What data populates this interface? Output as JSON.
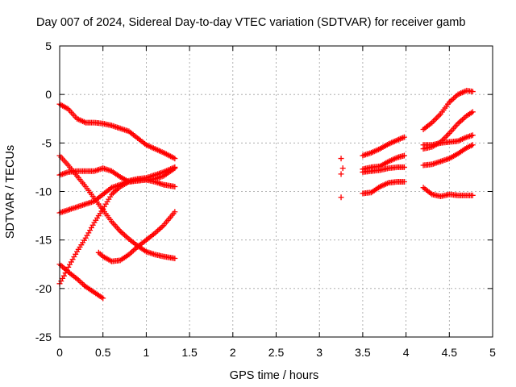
{
  "chart_data": {
    "type": "scatter",
    "title": "Day 007 of 2024, Sidereal Day-to-day VTEC variation (SDTVAR) for receiver gamb",
    "xlabel": "GPS time / hours",
    "ylabel": "SDTVAR / TECUs",
    "xlim": [
      0,
      5
    ],
    "ylim": [
      -25,
      5
    ],
    "x_ticks": [
      0,
      0.5,
      1,
      1.5,
      2,
      2.5,
      3,
      3.5,
      4,
      4.5,
      5
    ],
    "x_tick_labels": [
      "0",
      "0.5",
      "1",
      "1.5",
      "2",
      "2.5",
      "3",
      "3.5",
      "4",
      "4.5",
      "5"
    ],
    "y_ticks": [
      5,
      0,
      -5,
      -10,
      -15,
      -20,
      -25
    ],
    "y_tick_labels": [
      "5",
      "0",
      "-5",
      "-10",
      "-15",
      "-20",
      "-25"
    ],
    "grid": true,
    "marker": "plus",
    "color": "#ff0000",
    "series": [
      {
        "x": [
          0,
          0.1,
          0.2,
          0.3,
          0.4,
          0.5,
          0.6,
          0.7,
          0.8,
          0.9,
          1.0,
          1.1,
          1.2,
          1.33
        ],
        "y": [
          -1.0,
          -1.5,
          -2.5,
          -2.9,
          -2.9,
          -3.0,
          -3.2,
          -3.5,
          -3.8,
          -4.5,
          -5.2,
          -5.6,
          -6.0,
          -6.6
        ]
      },
      {
        "x": [
          0,
          0.1,
          0.2,
          0.3,
          0.4,
          0.5,
          0.6,
          0.7,
          0.8,
          0.9,
          1.0,
          1.1,
          1.2,
          1.33
        ],
        "y": [
          -6.3,
          -7.3,
          -8.4,
          -9.5,
          -10.7,
          -11.9,
          -13.1,
          -14.1,
          -14.9,
          -15.6,
          -16.2,
          -16.5,
          -16.7,
          -16.9
        ]
      },
      {
        "x": [
          0,
          0.1,
          0.2,
          0.3,
          0.4,
          0.5,
          0.6,
          0.7,
          0.8,
          0.9,
          1.0,
          1.1,
          1.2,
          1.33
        ],
        "y": [
          -8.3,
          -8.0,
          -7.9,
          -7.9,
          -7.9,
          -7.6,
          -7.9,
          -8.5,
          -9.0,
          -8.8,
          -8.8,
          -9.0,
          -9.3,
          -9.5
        ]
      },
      {
        "x": [
          0,
          0.1,
          0.2,
          0.3,
          0.4,
          0.5,
          0.6,
          0.7,
          0.8,
          0.9,
          1.0,
          1.1,
          1.2,
          1.33
        ],
        "y": [
          -12.2,
          -11.9,
          -11.6,
          -11.3,
          -11.0,
          -10.3,
          -9.6,
          -9.3,
          -8.9,
          -8.7,
          -8.6,
          -8.3,
          -8.0,
          -7.5
        ]
      },
      {
        "x": [
          0,
          0.05,
          0.1,
          0.2,
          0.3,
          0.4,
          0.5,
          0.6,
          0.7,
          0.8,
          0.9,
          1.0,
          1.1,
          1.2,
          1.33
        ],
        "y": [
          -19.5,
          -18.7,
          -17.8,
          -16.2,
          -14.8,
          -13.2,
          -11.8,
          -10.3,
          -9.5,
          -9.0,
          -8.9,
          -8.8,
          -8.7,
          -8.4,
          -7.6
        ]
      },
      {
        "x": [
          0,
          0.1,
          0.2,
          0.3,
          0.4,
          0.5
        ],
        "y": [
          -17.5,
          -18.3,
          -19.0,
          -19.8,
          -20.4,
          -21.0
        ]
      },
      {
        "x": [
          0.45,
          0.5,
          0.6,
          0.7,
          0.8,
          0.9,
          1.0,
          1.1,
          1.2,
          1.33
        ],
        "y": [
          -16.3,
          -16.7,
          -17.2,
          -17.1,
          -16.5,
          -15.7,
          -15.0,
          -14.3,
          -13.5,
          -12.1
        ]
      },
      {
        "x": [
          3.25,
          3.27,
          3.25
        ],
        "y": [
          -6.6,
          -7.6,
          -8.2
        ]
      },
      {
        "x": [
          3.25
        ],
        "y": [
          -10.6
        ]
      },
      {
        "x": [
          3.5,
          3.6,
          3.7,
          3.8,
          3.9,
          3.98
        ],
        "y": [
          -6.3,
          -6.0,
          -5.6,
          -5.1,
          -4.7,
          -4.4
        ]
      },
      {
        "x": [
          3.5,
          3.6,
          3.7,
          3.8,
          3.9,
          3.98
        ],
        "y": [
          -7.7,
          -7.5,
          -7.4,
          -6.9,
          -6.5,
          -6.3
        ]
      },
      {
        "x": [
          3.5,
          3.6,
          3.7,
          3.8,
          3.9,
          3.98
        ],
        "y": [
          -8.0,
          -7.9,
          -7.8,
          -7.6,
          -7.5,
          -7.5
        ]
      },
      {
        "x": [
          3.5,
          3.6,
          3.7,
          3.8,
          3.9,
          3.98
        ],
        "y": [
          -10.2,
          -10.1,
          -9.5,
          -9.1,
          -9.0,
          -9.0
        ]
      },
      {
        "x": [
          4.2,
          4.3,
          4.4,
          4.5,
          4.6,
          4.7,
          4.77
        ],
        "y": [
          -3.6,
          -2.9,
          -2.0,
          -0.8,
          0.0,
          0.4,
          0.3
        ]
      },
      {
        "x": [
          4.2,
          4.3,
          4.4,
          4.5,
          4.6,
          4.7,
          4.77
        ],
        "y": [
          -5.6,
          -5.4,
          -4.9,
          -4.0,
          -3.0,
          -2.2,
          -1.8
        ]
      },
      {
        "x": [
          4.2,
          4.3,
          4.4,
          4.5,
          4.6,
          4.7,
          4.77
        ],
        "y": [
          -5.2,
          -5.2,
          -5.0,
          -4.9,
          -4.8,
          -4.4,
          -4.2
        ]
      },
      {
        "x": [
          4.2,
          4.3,
          4.4,
          4.5,
          4.6,
          4.7,
          4.77
        ],
        "y": [
          -7.3,
          -7.2,
          -6.9,
          -6.6,
          -6.1,
          -5.5,
          -5.2
        ]
      },
      {
        "x": [
          4.2,
          4.3,
          4.4,
          4.5,
          4.6,
          4.7,
          4.77
        ],
        "y": [
          -9.6,
          -10.3,
          -10.5,
          -10.3,
          -10.4,
          -10.4,
          -10.4
        ]
      }
    ]
  }
}
